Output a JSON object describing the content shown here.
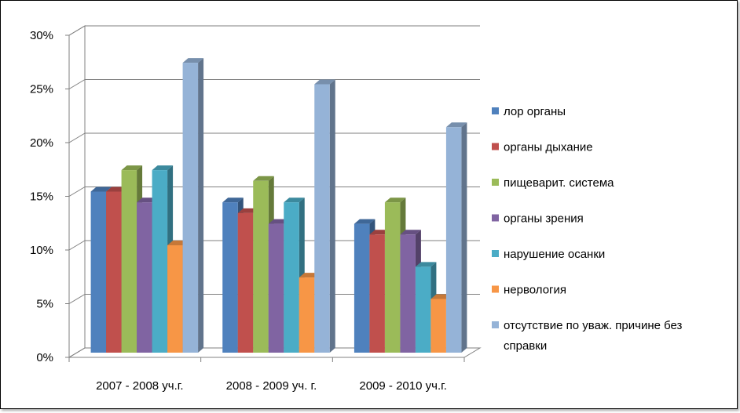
{
  "chart_data": {
    "type": "bar",
    "title": "",
    "xlabel": "",
    "ylabel": "",
    "categories": [
      "2007 - 2008 уч.г.",
      "2008 - 2009 уч. г.",
      "2009 - 2010 уч.г."
    ],
    "ylim": [
      0,
      30
    ],
    "yticks": [
      0,
      5,
      10,
      15,
      20,
      25,
      30
    ],
    "ytick_labels": [
      "0%",
      "5%",
      "10%",
      "15%",
      "20%",
      "25%",
      "30%"
    ],
    "grid": true,
    "legend_position": "right",
    "style": "3d-clustered-column",
    "series": [
      {
        "name": "лор органы",
        "color": "#4F81BD",
        "values": [
          15,
          14,
          12
        ]
      },
      {
        "name": "органы дыхание",
        "color": "#C0504D",
        "values": [
          15,
          13,
          11
        ]
      },
      {
        "name": "пищеварит. система",
        "color": "#9BBB59",
        "values": [
          17,
          16,
          14
        ]
      },
      {
        "name": "органы зрения",
        "color": "#8064A2",
        "values": [
          14,
          12,
          11
        ]
      },
      {
        "name": "нарушение осанки",
        "color": "#4BACC6",
        "values": [
          17,
          14,
          8
        ]
      },
      {
        "name": "нервология",
        "color": "#F79646",
        "values": [
          10,
          7,
          5
        ]
      },
      {
        "name": "отсутствие по уваж. причине без справки",
        "legend_lines": [
          "отсутствие по уваж. причине без",
          "справки"
        ],
        "color": "#95B3D7",
        "values": [
          27,
          25,
          21
        ]
      }
    ]
  }
}
